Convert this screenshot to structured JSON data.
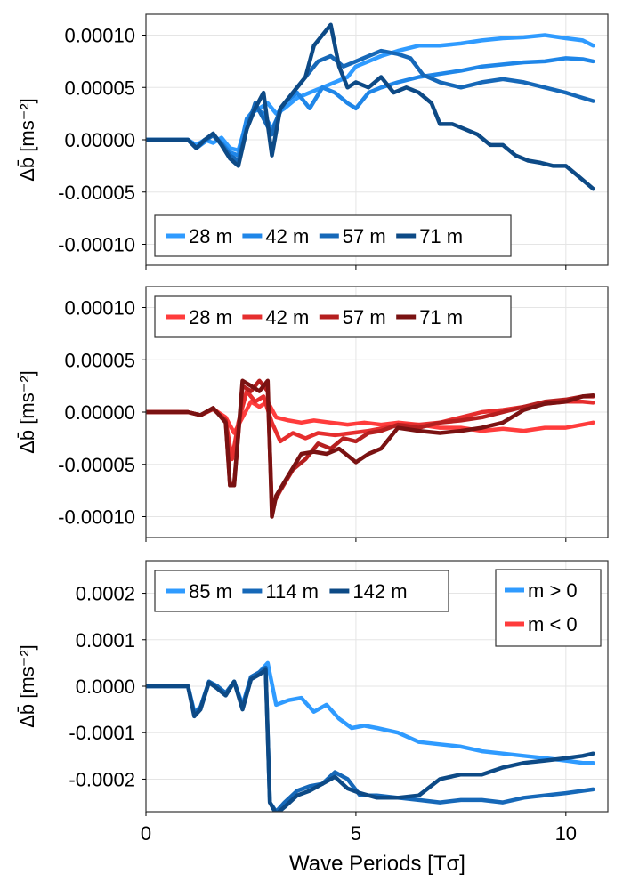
{
  "figure": {
    "xlabel": "Wave Periods [Tσ]"
  },
  "chart_data": [
    {
      "type": "line",
      "panel": "top",
      "ylabel": "Δb̄ [ms⁻²]",
      "xlim": [
        0,
        11
      ],
      "ylim": [
        -0.00012,
        0.00012
      ],
      "xticks": [
        0,
        5,
        10
      ],
      "xtick_labels": [
        "0",
        "5",
        "10"
      ],
      "yticks": [
        0.0001,
        5e-05,
        0,
        -5e-05,
        -0.0001
      ],
      "ytick_labels": [
        "0.00010",
        "0.00005",
        "0.00000",
        "-0.00005",
        "-0.00010"
      ],
      "show_xtick_labels": false,
      "grid": true,
      "legend_position": "bottom-left",
      "legend_orientation": "horizontal",
      "series": [
        {
          "name": "28 m",
          "color": "#2f9bff",
          "x": [
            0,
            0.5,
            1.0,
            1.2,
            1.4,
            1.6,
            1.8,
            2.0,
            2.2,
            2.35,
            2.5,
            2.7,
            2.9,
            3.1,
            3.3,
            3.6,
            3.9,
            4.2,
            4.5,
            4.8,
            5.0,
            5.3,
            5.6,
            6.0,
            6.5,
            7.0,
            7.5,
            8.0,
            8.5,
            9.0,
            9.5,
            10.0,
            10.4,
            10.65
          ],
          "y": [
            0,
            0,
            0,
            -5e-06,
            0,
            -3e-06,
            2e-06,
            -8e-06,
            -1e-05,
            1e-05,
            2.5e-05,
            3e-05,
            3.5e-05,
            2.5e-05,
            3e-05,
            4e-05,
            4.5e-05,
            5e-05,
            5.5e-05,
            6e-05,
            7e-05,
            7.5e-05,
            8e-05,
            8.5e-05,
            9e-05,
            9e-05,
            9.2e-05,
            9.5e-05,
            9.7e-05,
            9.8e-05,
            0.0001,
            9.7e-05,
            9.5e-05,
            9e-05
          ]
        },
        {
          "name": "42 m",
          "color": "#1f86e8",
          "x": [
            0,
            0.5,
            1.0,
            1.2,
            1.4,
            1.6,
            1.8,
            2.0,
            2.2,
            2.4,
            2.6,
            2.8,
            3.0,
            3.3,
            3.6,
            3.9,
            4.2,
            4.5,
            4.8,
            5.0,
            5.3,
            5.6,
            6.0,
            6.5,
            7.0,
            7.5,
            8.0,
            8.5,
            9.0,
            9.5,
            10.0,
            10.4,
            10.65
          ],
          "y": [
            0,
            0,
            0,
            -8e-06,
            -2e-06,
            5e-06,
            -3e-06,
            -1.2e-05,
            -1.5e-05,
            2e-05,
            3e-05,
            2.5e-05,
            1e-05,
            3.5e-05,
            4.5e-05,
            3e-05,
            5e-05,
            4.5e-05,
            3.5e-05,
            3e-05,
            4.5e-05,
            5e-05,
            5.5e-05,
            6e-05,
            6.3e-05,
            6.6e-05,
            7e-05,
            7.2e-05,
            7.4e-05,
            7.5e-05,
            7.8e-05,
            7.7e-05,
            7.5e-05
          ]
        },
        {
          "name": "57 m",
          "color": "#1668b8",
          "x": [
            0,
            0.5,
            1.0,
            1.2,
            1.4,
            1.6,
            1.8,
            2.0,
            2.2,
            2.4,
            2.6,
            2.8,
            3.0,
            3.2,
            3.5,
            3.8,
            4.1,
            4.4,
            4.7,
            5.0,
            5.3,
            5.6,
            6.0,
            6.3,
            6.6,
            7.0,
            7.5,
            8.0,
            8.5,
            9.0,
            9.5,
            10.0,
            10.4,
            10.65
          ],
          "y": [
            0,
            0,
            0,
            -8e-06,
            0,
            4e-06,
            -4e-06,
            -1.5e-05,
            -2e-05,
            1e-05,
            3.5e-05,
            2e-05,
            5e-06,
            3e-05,
            4.5e-05,
            6e-05,
            7.5e-05,
            8e-05,
            7e-05,
            7.5e-05,
            8e-05,
            8.5e-05,
            8.2e-05,
            7.8e-05,
            6.2e-05,
            5.5e-05,
            5e-05,
            5.5e-05,
            5.8e-05,
            5.5e-05,
            5e-05,
            4.5e-05,
            4e-05,
            3.7e-05
          ]
        },
        {
          "name": "71 m",
          "color": "#0d4a86",
          "x": [
            0,
            0.5,
            1.0,
            1.2,
            1.4,
            1.6,
            1.8,
            2.0,
            2.2,
            2.4,
            2.6,
            2.8,
            3.0,
            3.2,
            3.5,
            3.8,
            4.0,
            4.2,
            4.4,
            4.6,
            4.8,
            5.0,
            5.3,
            5.6,
            5.9,
            6.2,
            6.5,
            6.8,
            7.0,
            7.3,
            7.6,
            7.9,
            8.2,
            8.5,
            8.8,
            9.1,
            9.4,
            9.7,
            10.0,
            10.3,
            10.65
          ],
          "y": [
            0,
            0,
            0,
            -8e-06,
            0,
            6e-06,
            -5e-06,
            -1.8e-05,
            -2.5e-05,
            1e-05,
            3e-05,
            4.5e-05,
            -1.5e-05,
            3e-05,
            4.5e-05,
            6e-05,
            9e-05,
            0.0001,
            0.00011,
            7e-05,
            5e-05,
            5.5e-05,
            5e-05,
            6e-05,
            4.5e-05,
            5e-05,
            4.5e-05,
            3.5e-05,
            1.5e-05,
            1.5e-05,
            1e-05,
            5e-06,
            -5e-06,
            -5e-06,
            -1.5e-05,
            -2e-05,
            -2.2e-05,
            -2.5e-05,
            -2.5e-05,
            -3.5e-05,
            -4.7e-05
          ]
        }
      ]
    },
    {
      "type": "line",
      "panel": "middle",
      "ylabel": "Δb̄ [ms⁻²]",
      "xlim": [
        0,
        11
      ],
      "ylim": [
        -0.00012,
        0.00012
      ],
      "xticks": [
        0,
        5,
        10
      ],
      "xtick_labels": [
        "0",
        "5",
        "10"
      ],
      "yticks": [
        0.0001,
        5e-05,
        0,
        -5e-05,
        -0.0001
      ],
      "ytick_labels": [
        "0.00010",
        "0.00005",
        "0.00000",
        "-0.00005",
        "-0.00010"
      ],
      "show_xtick_labels": false,
      "grid": true,
      "legend_position": "top-left",
      "legend_orientation": "horizontal",
      "series": [
        {
          "name": "28 m",
          "color": "#ff3c3c",
          "x": [
            0,
            0.5,
            1.0,
            1.3,
            1.6,
            1.9,
            2.1,
            2.3,
            2.5,
            2.7,
            2.9,
            3.1,
            3.4,
            3.7,
            4.0,
            4.4,
            4.8,
            5.2,
            5.6,
            6.0,
            6.5,
            7.0,
            7.5,
            8.0,
            8.5,
            9.0,
            9.5,
            10.0,
            10.4,
            10.65
          ],
          "y": [
            0,
            0,
            0,
            -3e-06,
            3e-06,
            -5e-06,
            -2e-05,
            -5e-06,
            1e-05,
            5e-06,
            1e-05,
            -5e-06,
            -8e-06,
            -1e-05,
            -8e-06,
            -1e-05,
            -1.2e-05,
            -1e-05,
            -1.2e-05,
            -1e-05,
            -1.2e-05,
            -1.5e-05,
            -1.5e-05,
            -1.8e-05,
            -1.6e-05,
            -1.8e-05,
            -1.5e-05,
            -1.5e-05,
            -1.2e-05,
            -1e-05
          ]
        },
        {
          "name": "42 m",
          "color": "#e62e2e",
          "x": [
            0,
            0.5,
            1.0,
            1.3,
            1.6,
            1.9,
            2.05,
            2.2,
            2.4,
            2.6,
            2.8,
            3.0,
            3.2,
            3.5,
            3.8,
            4.1,
            4.5,
            4.9,
            5.3,
            5.7,
            6.1,
            6.5,
            7.0,
            7.5,
            8.0,
            8.5,
            9.0,
            9.5,
            10.0,
            10.4,
            10.65
          ],
          "y": [
            0,
            0,
            0,
            -3e-06,
            3e-06,
            -8e-06,
            -4.5e-05,
            -1e-05,
            2e-05,
            1e-05,
            1.5e-05,
            -1e-05,
            -2.8e-05,
            -2e-05,
            -2.5e-05,
            -2e-05,
            -2.2e-05,
            -2e-05,
            -1.8e-05,
            -1.5e-05,
            -1.2e-05,
            -1.2e-05,
            -1e-05,
            -5e-06,
            0,
            2e-06,
            5e-06,
            8e-06,
            1e-05,
            1e-05,
            9e-06
          ]
        },
        {
          "name": "57 m",
          "color": "#b51f1f",
          "x": [
            0,
            0.5,
            1.0,
            1.3,
            1.6,
            1.9,
            2.0,
            2.1,
            2.3,
            2.5,
            2.7,
            2.9,
            3.0,
            3.2,
            3.5,
            3.8,
            4.1,
            4.4,
            4.7,
            5.0,
            5.3,
            5.6,
            6.0,
            6.5,
            7.0,
            7.5,
            8.0,
            8.5,
            9.0,
            9.5,
            10.0,
            10.4,
            10.65
          ],
          "y": [
            0,
            0,
            0,
            -3e-06,
            3e-06,
            -8e-06,
            -7e-05,
            -6.8e-05,
            2.5e-05,
            2e-05,
            3e-05,
            2e-05,
            -9e-05,
            -7.5e-05,
            -5.5e-05,
            -4.5e-05,
            -3e-05,
            -3.5e-05,
            -2.5e-05,
            -2.8e-05,
            -2e-05,
            -1.8e-05,
            -1.2e-05,
            -1.5e-05,
            -1e-05,
            -8e-06,
            -5e-06,
            0,
            5e-06,
            1e-05,
            1.2e-05,
            1.5e-05,
            1.5e-05
          ]
        },
        {
          "name": "71 m",
          "color": "#7a1212",
          "x": [
            0,
            0.5,
            1.0,
            1.3,
            1.6,
            1.9,
            2.0,
            2.1,
            2.3,
            2.5,
            2.7,
            2.9,
            3.0,
            3.1,
            3.4,
            3.7,
            4.0,
            4.3,
            4.6,
            5.0,
            5.3,
            5.6,
            6.0,
            6.5,
            7.0,
            7.5,
            8.0,
            8.5,
            9.0,
            9.5,
            10.0,
            10.4,
            10.65
          ],
          "y": [
            0,
            0,
            0,
            -3e-06,
            4e-06,
            -1e-05,
            -7e-05,
            -7e-05,
            3e-05,
            2.5e-05,
            2e-05,
            3e-05,
            -0.0001,
            -8e-05,
            -6e-05,
            -4e-05,
            -3.8e-05,
            -4e-05,
            -3.5e-05,
            -4.8e-05,
            -4e-05,
            -3.5e-05,
            -1.5e-05,
            -1.8e-05,
            -2e-05,
            -1.8e-05,
            -1.5e-05,
            -1e-05,
            2e-06,
            8e-06,
            1e-05,
            1.5e-05,
            1.6e-05
          ]
        }
      ]
    },
    {
      "type": "line",
      "panel": "bottom",
      "ylabel": "Δb̄ [ms⁻²]",
      "xlim": [
        0,
        11
      ],
      "ylim": [
        -0.00027,
        0.00027
      ],
      "xticks": [
        0,
        5,
        10
      ],
      "xtick_labels": [
        "0",
        "5",
        "10"
      ],
      "yticks": [
        0.0002,
        0.0001,
        0,
        -0.0001,
        -0.0002
      ],
      "ytick_labels": [
        "0.0002",
        "0.0001",
        "0.0000",
        "-0.0001",
        "-0.0002"
      ],
      "show_xtick_labels": true,
      "grid": true,
      "legend_position": "top-left",
      "legend_orientation": "horizontal",
      "sign_legend": {
        "position": "top-right",
        "entries": [
          {
            "name": "m > 0",
            "color": "#2f9bff"
          },
          {
            "name": "m < 0",
            "color": "#ff3c3c"
          }
        ]
      },
      "series": [
        {
          "name": "85 m",
          "color": "#2f9bff",
          "x": [
            0,
            0.5,
            1.0,
            1.15,
            1.3,
            1.5,
            1.7,
            1.9,
            2.1,
            2.3,
            2.5,
            2.7,
            2.9,
            3.1,
            3.4,
            3.7,
            4.0,
            4.3,
            4.6,
            4.9,
            5.2,
            5.5,
            6.0,
            6.5,
            7.0,
            7.5,
            8.0,
            8.5,
            9.0,
            9.5,
            10.0,
            10.4,
            10.65
          ],
          "y": [
            0,
            0,
            0,
            -5.5e-05,
            -4.5e-05,
            1e-05,
            0,
            -1.5e-05,
            1e-05,
            -4e-05,
            2e-05,
            3e-05,
            5e-05,
            -4e-05,
            -3e-05,
            -2.5e-05,
            -5.5e-05,
            -4e-05,
            -7e-05,
            -9e-05,
            -8.5e-05,
            -9e-05,
            -0.0001,
            -0.00012,
            -0.000125,
            -0.00013,
            -0.00014,
            -0.000145,
            -0.00015,
            -0.000155,
            -0.00016,
            -0.000165,
            -0.000165
          ]
        },
        {
          "name": "114 m",
          "color": "#1668b8",
          "x": [
            0,
            0.5,
            1.0,
            1.15,
            1.3,
            1.5,
            1.7,
            1.9,
            2.1,
            2.3,
            2.5,
            2.7,
            2.85,
            2.95,
            3.1,
            3.3,
            3.6,
            3.9,
            4.2,
            4.5,
            4.8,
            5.1,
            5.5,
            6.0,
            6.5,
            7.0,
            7.5,
            8.0,
            8.5,
            9.0,
            9.5,
            10.0,
            10.4,
            10.65
          ],
          "y": [
            0,
            0,
            0,
            -6e-05,
            -4.5e-05,
            1e-05,
            0,
            -1.5e-05,
            1e-05,
            -4.5e-05,
            2e-05,
            3e-05,
            4e-05,
            -0.00025,
            -0.00027,
            -0.00025,
            -0.000225,
            -0.000215,
            -0.00021,
            -0.000185,
            -0.0002,
            -0.000235,
            -0.000235,
            -0.00024,
            -0.000245,
            -0.00025,
            -0.000245,
            -0.000245,
            -0.00025,
            -0.00024,
            -0.000235,
            -0.00023,
            -0.000225,
            -0.000222
          ]
        },
        {
          "name": "142 m",
          "color": "#0d4a86",
          "x": [
            0,
            0.5,
            1.0,
            1.15,
            1.3,
            1.5,
            1.7,
            1.9,
            2.1,
            2.3,
            2.5,
            2.7,
            2.85,
            2.95,
            3.1,
            3.3,
            3.6,
            3.9,
            4.2,
            4.5,
            4.8,
            5.1,
            5.5,
            6.0,
            6.5,
            7.0,
            7.5,
            8.0,
            8.5,
            9.0,
            9.5,
            10.0,
            10.4,
            10.65
          ],
          "y": [
            0,
            0,
            0,
            -6.5e-05,
            -5e-05,
            8e-06,
            -5e-06,
            -2e-05,
            1e-05,
            -5e-05,
            1.5e-05,
            2.5e-05,
            3.5e-05,
            -0.00025,
            -0.000275,
            -0.00026,
            -0.000235,
            -0.000225,
            -0.00021,
            -0.000195,
            -0.00022,
            -0.00023,
            -0.00024,
            -0.00024,
            -0.000235,
            -0.0002,
            -0.00019,
            -0.00019,
            -0.000175,
            -0.000165,
            -0.00016,
            -0.000155,
            -0.00015,
            -0.000145
          ]
        }
      ]
    }
  ]
}
